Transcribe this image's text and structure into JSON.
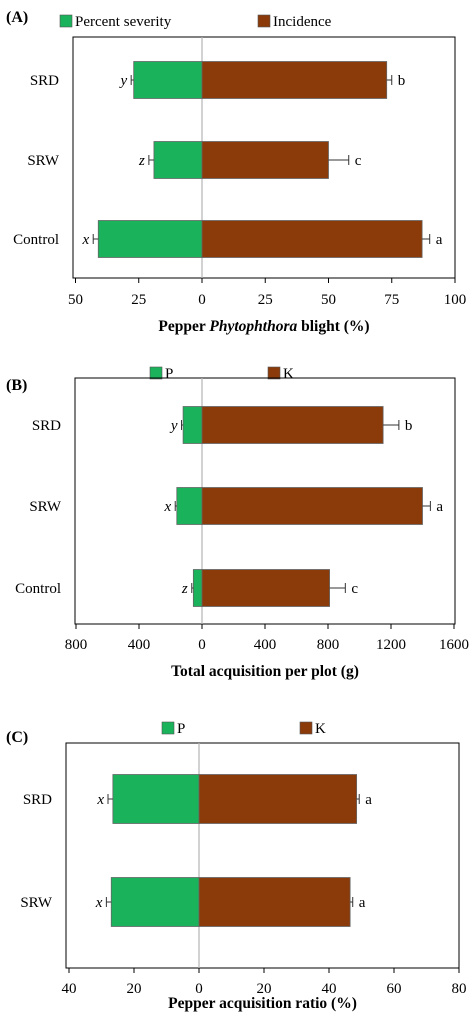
{
  "chart_data": [
    {
      "type": "bar",
      "panel_label": "(A)",
      "orientation": "horizontal-diverging",
      "categories": [
        "SRD",
        "SRW",
        "Control"
      ],
      "series": [
        {
          "name": "Percent severity",
          "direction": "left",
          "color": "#1ab25a",
          "values": [
            27,
            19,
            41
          ],
          "errors": [
            1,
            2,
            2
          ],
          "letters": [
            "y",
            "z",
            "x"
          ]
        },
        {
          "name": "Incidence",
          "direction": "right",
          "color": "#8b3a0a",
          "values": [
            73,
            50,
            87
          ],
          "errors": [
            2,
            8,
            3
          ],
          "letters": [
            "b",
            "c",
            "a"
          ]
        }
      ],
      "left_ticks": [
        "50",
        "25"
      ],
      "left_tick_values": [
        50,
        25
      ],
      "right_ticks": [
        "0",
        "25",
        "50",
        "75",
        "100"
      ],
      "right_tick_values": [
        0,
        25,
        50,
        75,
        100
      ],
      "xlim": [
        -50,
        100
      ],
      "xlabel_parts": [
        "Pepper ",
        "Phytophthora",
        " blight  (%)"
      ],
      "left_tick_color": "#cc0000",
      "grid": false
    },
    {
      "type": "bar",
      "panel_label": "(B)",
      "orientation": "horizontal-diverging",
      "categories": [
        "SRD",
        "SRW",
        "Control"
      ],
      "series": [
        {
          "name": "P",
          "direction": "left",
          "color": "#1ab25a",
          "values": [
            120,
            160,
            55
          ],
          "errors": [
            10,
            10,
            10
          ],
          "letters": [
            "y",
            "x",
            "z"
          ]
        },
        {
          "name": "K",
          "direction": "right",
          "color": "#8b3a0a",
          "values": [
            1150,
            1400,
            810
          ],
          "errors": [
            100,
            50,
            100
          ],
          "letters": [
            "b",
            "a",
            "c"
          ]
        }
      ],
      "left_ticks": [
        "800",
        "400"
      ],
      "left_tick_values": [
        800,
        400
      ],
      "right_ticks": [
        "0",
        "400",
        "800",
        "1200",
        "1600"
      ],
      "right_tick_values": [
        0,
        400,
        800,
        1200,
        1600
      ],
      "xlim": [
        -800,
        1600
      ],
      "xlabel_parts": [
        "Total acquisition per plot (g)"
      ],
      "left_tick_color": "#cc0000",
      "grid": false
    },
    {
      "type": "bar",
      "panel_label": "(C)",
      "orientation": "horizontal-diverging",
      "categories": [
        "SRD",
        "SRW"
      ],
      "series": [
        {
          "name": "P",
          "direction": "left",
          "color": "#1ab25a",
          "values": [
            26.5,
            27
          ],
          "errors": [
            1.5,
            1.5
          ],
          "letters": [
            "x",
            "x"
          ]
        },
        {
          "name": "K",
          "direction": "right",
          "color": "#8b3a0a",
          "values": [
            48.5,
            46.5
          ],
          "errors": [
            0.8,
            0.8
          ],
          "letters": [
            "a",
            "a"
          ]
        }
      ],
      "left_ticks": [
        "40",
        "20"
      ],
      "left_tick_values": [
        40,
        20
      ],
      "right_ticks": [
        "0",
        "20",
        "40",
        "60",
        "80"
      ],
      "right_tick_values": [
        0,
        20,
        40,
        60,
        80
      ],
      "xlim": [
        -40,
        80
      ],
      "xlabel_parts": [
        "Pepper acquisition ratio (%)"
      ],
      "left_tick_color": "#cc0000",
      "grid": false
    }
  ]
}
